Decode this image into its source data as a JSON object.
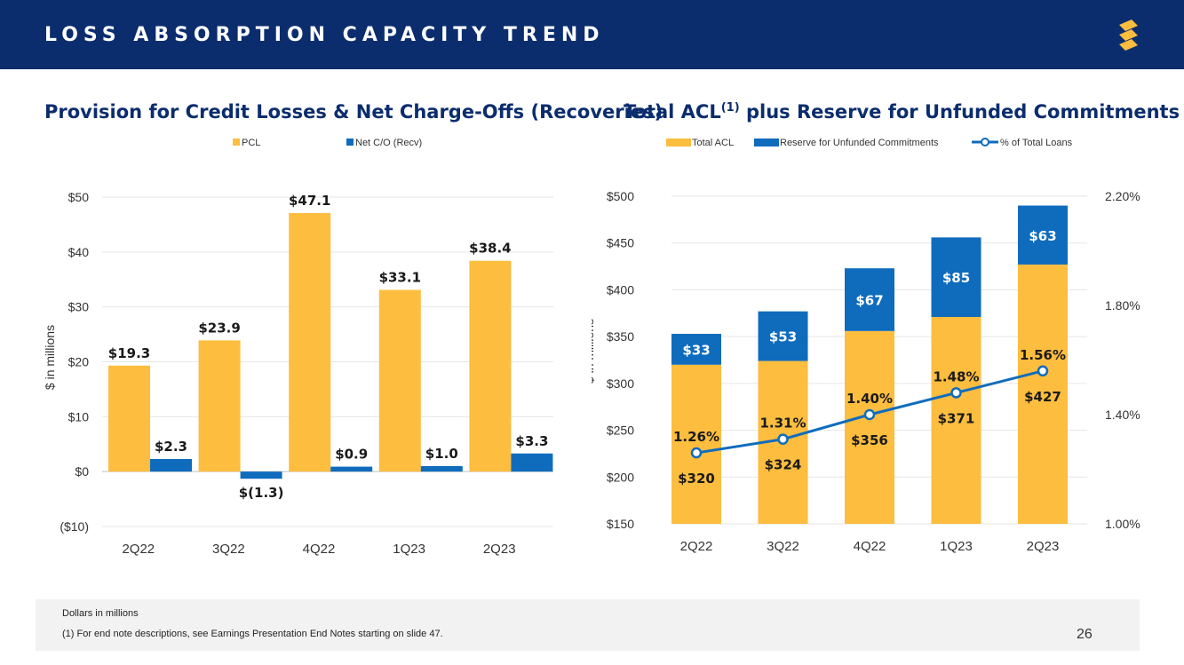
{
  "header": {
    "title": "LOSS ABSORPTION CAPACITY TREND",
    "logo_icon": "s-logo-icon"
  },
  "colors": {
    "navy": "#0b2d6e",
    "gold": "#fdbd3e",
    "blue": "#0f6cbd"
  },
  "chart_data": [
    {
      "type": "bar",
      "title": "Provision for Credit Losses & Net Charge-Offs (Recoveries)",
      "ylabel": "$ in millions",
      "categories": [
        "2Q22",
        "3Q22",
        "4Q22",
        "1Q23",
        "2Q23"
      ],
      "ylim": [
        -10,
        50
      ],
      "yticks": [
        -10,
        0,
        10,
        20,
        30,
        40,
        50
      ],
      "ytick_labels": [
        "($10)",
        "$0",
        "$10",
        "$20",
        "$30",
        "$40",
        "$50"
      ],
      "series": [
        {
          "name": "PCL",
          "color": "#fdbd3e",
          "values": [
            19.3,
            23.9,
            47.1,
            33.1,
            38.4
          ],
          "labels": [
            "$19.3",
            "$23.9",
            "$47.1",
            "$33.1",
            "$38.4"
          ]
        },
        {
          "name": "Net C/O (Recv)",
          "color": "#0f6cbd",
          "values": [
            2.3,
            -1.3,
            0.9,
            1.0,
            3.3
          ],
          "labels": [
            "$2.3",
            "$(1.3)",
            "$0.9",
            "$1.0",
            "$3.3"
          ]
        }
      ],
      "legend": "top-center"
    },
    {
      "type": "stacked-bar-line",
      "title": "Total ACL",
      "title_sup": "(1)",
      "title_rest": " plus Reserve for Unfunded Commitments",
      "ylabel": "$ in millions",
      "categories": [
        "2Q22",
        "3Q22",
        "4Q22",
        "1Q23",
        "2Q23"
      ],
      "ylim": [
        150,
        500
      ],
      "yticks": [
        150,
        200,
        250,
        300,
        350,
        400,
        450,
        500
      ],
      "ytick_labels": [
        "$150",
        "$200",
        "$250",
        "$300",
        "$350",
        "$400",
        "$450",
        "$500"
      ],
      "y2lim": [
        1.0,
        2.2
      ],
      "y2ticks": [
        1.0,
        1.4,
        1.8,
        2.2
      ],
      "y2tick_labels": [
        "1.00%",
        "1.40%",
        "1.80%",
        "2.20%"
      ],
      "series": [
        {
          "name": "Total ACL",
          "color": "#fdbd3e",
          "values": [
            320,
            324,
            356,
            371,
            427
          ],
          "labels": [
            "$320",
            "$324",
            "$356",
            "$371",
            "$427"
          ]
        },
        {
          "name": "Reserve for Unfunded Commitments",
          "color": "#0f6cbd",
          "values": [
            33,
            53,
            67,
            85,
            63
          ],
          "labels": [
            "$33",
            "$53",
            "$67",
            "$85",
            "$63"
          ]
        },
        {
          "name": "% of Total Loans",
          "color": "#0f6cbd",
          "axis": "secondary",
          "values": [
            1.26,
            1.31,
            1.4,
            1.48,
            1.56
          ],
          "labels": [
            "1.26%",
            "1.31%",
            "1.40%",
            "1.48%",
            "1.56%"
          ]
        }
      ],
      "legend": "top-center"
    }
  ],
  "footer": {
    "note": "Dollars in millions",
    "endnote": "(1)   For end note descriptions, see Earnings Presentation End Notes starting on slide 47."
  },
  "page_number": "26"
}
